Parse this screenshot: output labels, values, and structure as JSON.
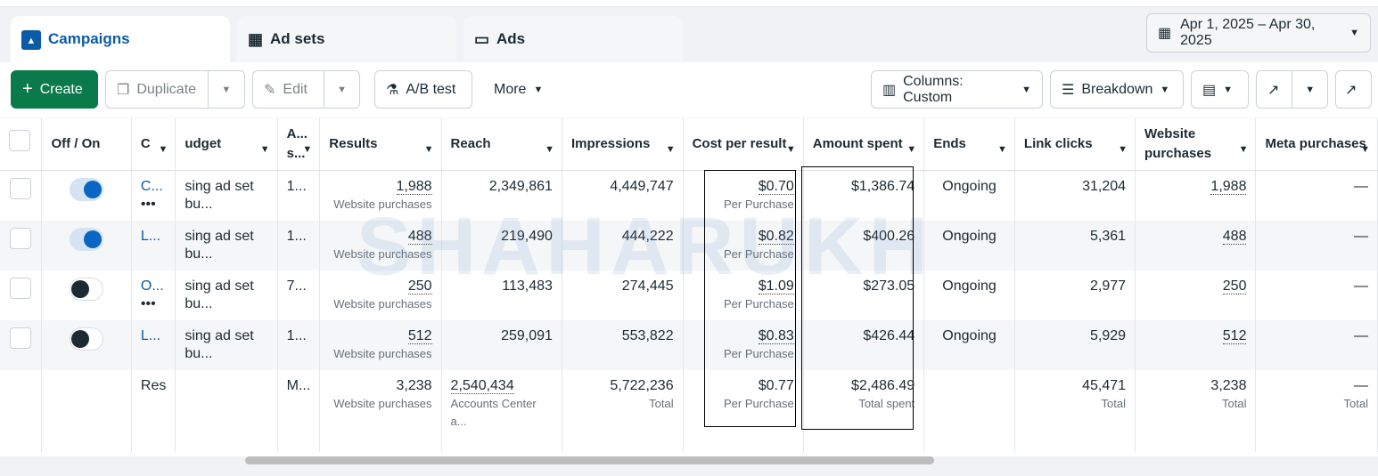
{
  "tabs": [
    {
      "label": "Campaigns",
      "icon": "campaign-folder-icon"
    },
    {
      "label": "Ad sets",
      "icon": "grid-icon"
    },
    {
      "label": "Ads",
      "icon": "ad-window-icon"
    }
  ],
  "date_range": "Apr 1, 2025 – Apr 30, 2025",
  "toolbar": {
    "create": "Create",
    "duplicate": "Duplicate",
    "edit": "Edit",
    "ab_test": "A/B test",
    "more": "More",
    "columns": "Columns: Custom",
    "breakdown": "Breakdown"
  },
  "colors": {
    "accent": "#0a5ca8",
    "create": "#0b7a4a",
    "toggle_on": "#0a66c2"
  },
  "watermark": "SHAHARUKH",
  "headers": [
    "",
    "Off / On",
    "C",
    "udget",
    "A... s...",
    "Results",
    "Reach",
    "Impressions",
    "Cost per result",
    "Amount spent",
    "Ends",
    "Link clicks",
    "Website purchases",
    "Meta purchases"
  ],
  "rows": [
    {
      "on": true,
      "name": "C...",
      "more": "•••",
      "budget": "sing ad set bu...",
      "a": "1...",
      "results": "1,988",
      "results_sub": "Website purchases",
      "reach": "2,349,861",
      "impressions": "4,449,747",
      "cpr": "$0.70",
      "cpr_sub": "Per Purchase",
      "spent": "$1,386.74",
      "ends": "Ongoing",
      "clicks": "31,204",
      "web": "1,988",
      "meta": "—"
    },
    {
      "on": true,
      "name": "L...",
      "more": "",
      "budget": "sing ad set bu...",
      "a": "1...",
      "results": "488",
      "results_sub": "Website purchases",
      "reach": "219,490",
      "impressions": "444,222",
      "cpr": "$0.82",
      "cpr_sub": "Per Purchase",
      "spent": "$400.26",
      "ends": "Ongoing",
      "clicks": "5,361",
      "web": "488",
      "meta": "—"
    },
    {
      "on": false,
      "name": "O...",
      "more": "•••",
      "budget": "sing ad set bu...",
      "a": "7...",
      "results": "250",
      "results_sub": "Website purchases",
      "reach": "113,483",
      "impressions": "274,445",
      "cpr": "$1.09",
      "cpr_sub": "Per Purchase",
      "spent": "$273.05",
      "ends": "Ongoing",
      "clicks": "2,977",
      "web": "250",
      "meta": "—"
    },
    {
      "on": false,
      "name": "L...",
      "more": "",
      "budget": "sing ad set bu...",
      "a": "1...",
      "results": "512",
      "results_sub": "Website purchases",
      "reach": "259,091",
      "impressions": "553,822",
      "cpr": "$0.83",
      "cpr_sub": "Per Purchase",
      "spent": "$426.44",
      "ends": "Ongoing",
      "clicks": "5,929",
      "web": "512",
      "meta": "—"
    }
  ],
  "summary": {
    "name": "Res",
    "a": "M...",
    "results": "3,238",
    "results_sub": "Website purchases",
    "reach": "2,540,434",
    "reach_sub": "Accounts Center a...",
    "impressions": "5,722,236",
    "impressions_sub": "Total",
    "cpr": "$0.77",
    "cpr_sub": "Per Purchase",
    "spent": "$2,486.49",
    "spent_sub": "Total spent",
    "clicks": "45,471",
    "clicks_sub": "Total",
    "web": "3,238",
    "web_sub": "Total",
    "meta": "—",
    "meta_sub": "Total"
  }
}
